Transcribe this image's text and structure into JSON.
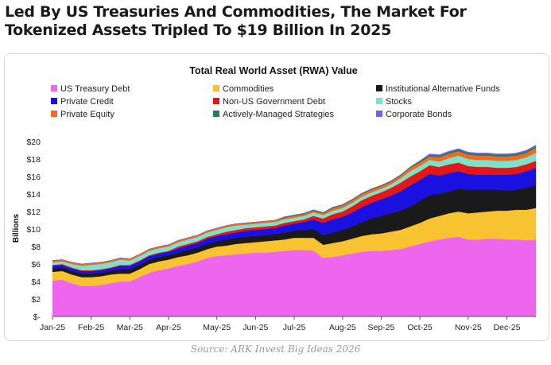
{
  "headline": "Led By US Treasuries And Commodities, The Market For Tokenized Assets Tripled To $19 Billion In 2025",
  "source": "Source: ARK Invest Big Ideas 2026",
  "chart_data": {
    "type": "area",
    "stacked": true,
    "title": "Total Real World Asset (RWA) Value",
    "xlabel": "",
    "ylabel": "Billions",
    "ylim": [
      0,
      20
    ],
    "yticks": [
      0,
      2,
      4,
      6,
      8,
      10,
      12,
      14,
      16,
      18,
      20
    ],
    "ytick_labels": [
      "$-",
      "$2",
      "$4",
      "$6",
      "$8",
      "$10",
      "$12",
      "$14",
      "$16",
      "$18",
      "$20"
    ],
    "x_labels": [
      "Jan-25",
      "Feb-25",
      "Mar-25",
      "Apr-25",
      "May-25",
      "Jun-25",
      "Jul-25",
      "Aug-25",
      "Sep-25",
      "Oct-25",
      "Nov-25",
      "Dec-25"
    ],
    "x_label_index": [
      0,
      4,
      8,
      12,
      17,
      21,
      25,
      30,
      34,
      38,
      43,
      47
    ],
    "grid": false,
    "legend_position": "top",
    "series": [
      {
        "name": "US Treasury Debt",
        "color": "#ee66ee",
        "values": [
          4.1,
          4.2,
          3.8,
          3.5,
          3.5,
          3.6,
          3.8,
          4.0,
          4.0,
          4.5,
          5.0,
          5.3,
          5.5,
          5.8,
          6.0,
          6.3,
          6.7,
          6.9,
          7.0,
          7.1,
          7.2,
          7.3,
          7.3,
          7.4,
          7.5,
          7.6,
          7.6,
          7.5,
          6.7,
          6.8,
          7.0,
          7.2,
          7.4,
          7.5,
          7.5,
          7.6,
          7.7,
          8.0,
          8.3,
          8.6,
          8.8,
          9.0,
          9.1,
          8.8,
          8.8,
          8.9,
          8.9,
          8.8,
          8.8,
          8.7,
          8.8
        ]
      },
      {
        "name": "Commodities",
        "color": "#f8c331",
        "values": [
          1.0,
          1.0,
          1.0,
          1.0,
          1.0,
          1.0,
          1.0,
          0.9,
          0.9,
          0.9,
          1.0,
          1.0,
          1.0,
          1.0,
          1.0,
          1.0,
          1.0,
          1.1,
          1.1,
          1.2,
          1.2,
          1.2,
          1.3,
          1.3,
          1.3,
          1.4,
          1.4,
          1.5,
          1.5,
          1.6,
          1.6,
          1.7,
          1.8,
          1.9,
          2.0,
          2.1,
          2.2,
          2.3,
          2.4,
          2.6,
          2.7,
          2.8,
          2.9,
          3.0,
          3.1,
          3.1,
          3.2,
          3.3,
          3.4,
          3.5,
          3.6
        ]
      },
      {
        "name": "Institutional Alternative Funds",
        "color": "#1a1a1a",
        "values": [
          0.4,
          0.4,
          0.4,
          0.4,
          0.4,
          0.4,
          0.4,
          0.5,
          0.5,
          0.5,
          0.5,
          0.5,
          0.5,
          0.5,
          0.6,
          0.6,
          0.6,
          0.6,
          0.7,
          0.7,
          0.7,
          0.7,
          0.7,
          0.7,
          0.8,
          0.8,
          0.9,
          1.0,
          1.1,
          1.2,
          1.3,
          1.4,
          1.6,
          1.8,
          2.0,
          2.1,
          2.2,
          2.3,
          2.5,
          2.7,
          2.5,
          2.5,
          2.6,
          2.7,
          2.6,
          2.5,
          2.4,
          2.3,
          2.3,
          2.5,
          2.6
        ]
      },
      {
        "name": "Private Credit",
        "color": "#1a10e0",
        "values": [
          0.3,
          0.3,
          0.3,
          0.3,
          0.3,
          0.3,
          0.3,
          0.4,
          0.4,
          0.4,
          0.4,
          0.4,
          0.4,
          0.5,
          0.5,
          0.5,
          0.6,
          0.6,
          0.6,
          0.6,
          0.7,
          0.7,
          0.7,
          0.7,
          0.8,
          0.8,
          0.9,
          1.1,
          1.4,
          1.5,
          1.5,
          1.6,
          1.7,
          1.8,
          1.9,
          2.0,
          2.2,
          2.4,
          2.4,
          2.4,
          2.1,
          2.1,
          2.0,
          1.8,
          1.7,
          1.7,
          1.7,
          1.8,
          1.8,
          1.9,
          2.0
        ]
      },
      {
        "name": "Non-US Government Debt",
        "color": "#e01818",
        "values": [
          0.1,
          0.1,
          0.1,
          0.1,
          0.1,
          0.1,
          0.1,
          0.1,
          0.1,
          0.1,
          0.1,
          0.1,
          0.1,
          0.2,
          0.2,
          0.2,
          0.2,
          0.2,
          0.3,
          0.3,
          0.3,
          0.3,
          0.3,
          0.3,
          0.3,
          0.3,
          0.3,
          0.4,
          0.5,
          0.6,
          0.6,
          0.7,
          0.8,
          0.8,
          0.8,
          0.9,
          1.0,
          1.0,
          1.0,
          1.0,
          1.0,
          1.0,
          1.0,
          0.9,
          0.9,
          0.9,
          0.8,
          0.8,
          0.8,
          0.8,
          0.8
        ]
      },
      {
        "name": "Stocks",
        "color": "#7de2c8",
        "values": [
          0.3,
          0.3,
          0.4,
          0.5,
          0.6,
          0.6,
          0.6,
          0.6,
          0.5,
          0.5,
          0.5,
          0.5,
          0.5,
          0.5,
          0.5,
          0.5,
          0.5,
          0.5,
          0.5,
          0.5,
          0.4,
          0.4,
          0.4,
          0.4,
          0.4,
          0.4,
          0.4,
          0.4,
          0.4,
          0.4,
          0.4,
          0.4,
          0.4,
          0.4,
          0.4,
          0.4,
          0.5,
          0.6,
          0.6,
          0.6,
          0.6,
          0.7,
          0.8,
          0.8,
          0.8,
          0.8,
          0.8,
          0.8,
          0.8,
          0.8,
          0.9
        ]
      },
      {
        "name": "Private Equity",
        "color": "#f06a22",
        "values": [
          0.2,
          0.2,
          0.2,
          0.2,
          0.2,
          0.2,
          0.2,
          0.2,
          0.2,
          0.2,
          0.2,
          0.2,
          0.2,
          0.2,
          0.2,
          0.2,
          0.2,
          0.2,
          0.2,
          0.2,
          0.2,
          0.2,
          0.2,
          0.2,
          0.2,
          0.2,
          0.2,
          0.2,
          0.2,
          0.3,
          0.3,
          0.3,
          0.3,
          0.3,
          0.3,
          0.3,
          0.3,
          0.4,
          0.4,
          0.4,
          0.5,
          0.5,
          0.5,
          0.5,
          0.5,
          0.5,
          0.5,
          0.5,
          0.5,
          0.5,
          0.6
        ]
      },
      {
        "name": "Actively-Managed Strategies",
        "color": "#2a7d5a",
        "values": [
          0.0,
          0.0,
          0.0,
          0.0,
          0.0,
          0.0,
          0.0,
          0.0,
          0.0,
          0.0,
          0.0,
          0.0,
          0.0,
          0.0,
          0.0,
          0.0,
          0.0,
          0.0,
          0.0,
          0.0,
          0.0,
          0.0,
          0.0,
          0.0,
          0.1,
          0.1,
          0.1,
          0.1,
          0.1,
          0.1,
          0.1,
          0.1,
          0.1,
          0.1,
          0.1,
          0.1,
          0.1,
          0.1,
          0.2,
          0.2,
          0.2,
          0.2,
          0.2,
          0.2,
          0.2,
          0.2,
          0.2,
          0.2,
          0.2,
          0.2,
          0.2
        ]
      },
      {
        "name": "Corporate Bonds",
        "color": "#7a5cf0",
        "values": [
          0.0,
          0.0,
          0.0,
          0.0,
          0.0,
          0.0,
          0.0,
          0.0,
          0.0,
          0.0,
          0.0,
          0.0,
          0.0,
          0.0,
          0.0,
          0.0,
          0.0,
          0.0,
          0.0,
          0.0,
          0.0,
          0.0,
          0.0,
          0.0,
          0.0,
          0.0,
          0.0,
          0.0,
          0.0,
          0.0,
          0.0,
          0.0,
          0.0,
          0.0,
          0.0,
          0.0,
          0.0,
          0.0,
          0.0,
          0.1,
          0.1,
          0.1,
          0.1,
          0.1,
          0.1,
          0.1,
          0.1,
          0.1,
          0.1,
          0.1,
          0.1
        ]
      }
    ]
  }
}
